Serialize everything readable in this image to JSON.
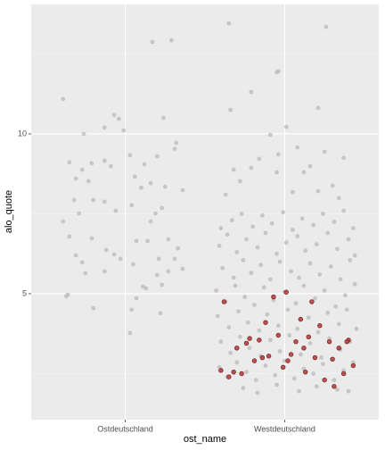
{
  "chart_data": {
    "type": "scatter",
    "x_label": "ost_name",
    "y_label": "alo_quote",
    "xlim": [
      0.41,
      2.59
    ],
    "xticks": [
      {
        "value": 1,
        "label": "Ostdeutschland"
      },
      {
        "value": 2,
        "label": "Westdeutschland"
      }
    ],
    "ylim": [
      1.06,
      14.05
    ],
    "yticks": [
      5,
      10
    ],
    "minor_yticks": [
      2.5,
      7.5,
      12.5
    ],
    "grid": true,
    "layers": [
      {
        "color": "#bdbdbd",
        "points": [
          [
            0.61,
            11.09
          ],
          [
            1.17,
            12.88
          ],
          [
            1.29,
            12.93
          ],
          [
            0.74,
            10.0
          ],
          [
            0.93,
            10.59
          ],
          [
            0.96,
            10.47
          ],
          [
            1.24,
            10.5
          ],
          [
            0.99,
            10.11
          ],
          [
            0.87,
            10.2
          ],
          [
            0.65,
            9.11
          ],
          [
            0.79,
            9.08
          ],
          [
            0.87,
            9.16
          ],
          [
            0.91,
            8.99
          ],
          [
            0.73,
            8.88
          ],
          [
            0.69,
            8.6
          ],
          [
            0.77,
            8.52
          ],
          [
            1.03,
            9.33
          ],
          [
            1.12,
            9.05
          ],
          [
            1.2,
            9.3
          ],
          [
            1.32,
            9.72
          ],
          [
            1.31,
            9.53
          ],
          [
            1.06,
            8.66
          ],
          [
            1.1,
            8.32
          ],
          [
            1.16,
            8.46
          ],
          [
            1.25,
            8.35
          ],
          [
            1.36,
            8.24
          ],
          [
            0.8,
            7.93
          ],
          [
            0.68,
            7.93
          ],
          [
            0.71,
            7.51
          ],
          [
            0.61,
            7.26
          ],
          [
            0.87,
            7.88
          ],
          [
            0.94,
            7.6
          ],
          [
            1.19,
            7.51
          ],
          [
            1.23,
            7.68
          ],
          [
            1.04,
            7.77
          ],
          [
            1.16,
            7.26
          ],
          [
            0.65,
            6.79
          ],
          [
            0.79,
            6.73
          ],
          [
            0.88,
            6.37
          ],
          [
            0.93,
            6.23
          ],
          [
            0.97,
            6.09
          ],
          [
            1.07,
            6.65
          ],
          [
            1.14,
            6.65
          ],
          [
            1.27,
            6.7
          ],
          [
            1.33,
            6.42
          ],
          [
            0.69,
            6.2
          ],
          [
            0.73,
            5.98
          ],
          [
            0.75,
            5.64
          ],
          [
            0.87,
            5.7
          ],
          [
            1.05,
            5.92
          ],
          [
            1.2,
            5.59
          ],
          [
            1.36,
            5.78
          ],
          [
            1.27,
            5.7
          ],
          [
            1.23,
            5.28
          ],
          [
            1.11,
            5.22
          ],
          [
            1.13,
            5.17
          ],
          [
            0.63,
            4.92
          ],
          [
            0.64,
            4.97
          ],
          [
            0.8,
            4.55
          ],
          [
            1.04,
            4.5
          ],
          [
            1.22,
            4.39
          ],
          [
            1.03,
            3.77
          ],
          [
            1.07,
            4.86
          ],
          [
            1.21,
            6.09
          ],
          [
            1.31,
            6.09
          ],
          [
            1.65,
            13.46
          ],
          [
            2.26,
            13.35
          ],
          [
            1.79,
            11.31
          ],
          [
            1.95,
            11.93
          ],
          [
            1.96,
            11.96
          ],
          [
            1.66,
            10.75
          ],
          [
            2.21,
            10.81
          ],
          [
            2.01,
            10.22
          ],
          [
            1.91,
            9.97
          ],
          [
            2.08,
            9.58
          ],
          [
            1.96,
            9.36
          ],
          [
            2.25,
            9.44
          ],
          [
            2.37,
            9.25
          ],
          [
            1.84,
            9.22
          ],
          [
            1.68,
            8.88
          ],
          [
            1.79,
            8.94
          ],
          [
            2.16,
            8.99
          ],
          [
            1.95,
            8.8
          ],
          [
            2.12,
            8.8
          ],
          [
            1.72,
            8.52
          ],
          [
            2.3,
            8.38
          ],
          [
            2.05,
            8.18
          ],
          [
            2.21,
            8.21
          ],
          [
            1.63,
            8.1
          ],
          [
            2.34,
            7.99
          ],
          [
            1.6,
            7.05
          ],
          [
            1.67,
            7.3
          ],
          [
            1.73,
            7.5
          ],
          [
            1.8,
            7.1
          ],
          [
            1.86,
            7.45
          ],
          [
            1.92,
            7.2
          ],
          [
            1.99,
            7.55
          ],
          [
            2.05,
            7.0
          ],
          [
            2.11,
            7.35
          ],
          [
            2.18,
            7.15
          ],
          [
            2.24,
            7.5
          ],
          [
            2.31,
            7.25
          ],
          [
            2.37,
            7.6
          ],
          [
            2.43,
            7.05
          ],
          [
            1.59,
            6.5
          ],
          [
            1.64,
            6.85
          ],
          [
            1.7,
            6.3
          ],
          [
            1.76,
            6.7
          ],
          [
            1.83,
            6.45
          ],
          [
            1.88,
            6.9
          ],
          [
            1.95,
            6.25
          ],
          [
            2.01,
            6.6
          ],
          [
            2.08,
            6.8
          ],
          [
            2.13,
            6.35
          ],
          [
            2.2,
            6.55
          ],
          [
            2.27,
            6.9
          ],
          [
            2.33,
            6.4
          ],
          [
            2.4,
            6.7
          ],
          [
            2.44,
            6.2
          ],
          [
            1.61,
            5.8
          ],
          [
            1.68,
            5.5
          ],
          [
            1.74,
            6.05
          ],
          [
            1.79,
            5.65
          ],
          [
            1.85,
            5.9
          ],
          [
            1.91,
            5.45
          ],
          [
            1.97,
            6.0
          ],
          [
            2.04,
            5.7
          ],
          [
            2.09,
            5.5
          ],
          [
            2.16,
            5.95
          ],
          [
            2.22,
            5.6
          ],
          [
            2.29,
            5.85
          ],
          [
            2.35,
            5.45
          ],
          [
            2.41,
            6.05
          ],
          [
            1.57,
            5.1
          ],
          [
            1.63,
            4.75
          ],
          [
            1.69,
            5.25
          ],
          [
            1.75,
            4.9
          ],
          [
            1.81,
            4.65
          ],
          [
            1.87,
            5.2
          ],
          [
            1.93,
            4.8
          ],
          [
            2.0,
            5.05
          ],
          [
            2.07,
            4.7
          ],
          [
            2.12,
            5.25
          ],
          [
            2.19,
            4.85
          ],
          [
            2.25,
            5.1
          ],
          [
            2.32,
            4.6
          ],
          [
            2.38,
            4.95
          ],
          [
            2.44,
            5.3
          ],
          [
            1.58,
            4.3
          ],
          [
            1.65,
            3.95
          ],
          [
            1.71,
            4.45
          ],
          [
            1.77,
            4.1
          ],
          [
            1.84,
            3.85
          ],
          [
            1.89,
            4.35
          ],
          [
            1.96,
            4.0
          ],
          [
            2.02,
            4.5
          ],
          [
            2.08,
            3.9
          ],
          [
            2.15,
            4.25
          ],
          [
            2.21,
            3.8
          ],
          [
            2.27,
            4.4
          ],
          [
            2.34,
            4.05
          ],
          [
            2.39,
            4.5
          ],
          [
            2.45,
            3.9
          ],
          [
            1.6,
            3.5
          ],
          [
            1.66,
            3.15
          ],
          [
            1.72,
            3.65
          ],
          [
            1.78,
            3.3
          ],
          [
            1.85,
            3.05
          ],
          [
            1.91,
            3.55
          ],
          [
            1.97,
            3.2
          ],
          [
            2.03,
            3.7
          ],
          [
            2.1,
            3.1
          ],
          [
            2.16,
            3.45
          ],
          [
            2.23,
            3.0
          ],
          [
            2.28,
            3.6
          ],
          [
            2.35,
            3.25
          ],
          [
            2.41,
            3.5
          ],
          [
            1.59,
            2.7
          ],
          [
            1.64,
            2.4
          ],
          [
            1.7,
            2.85
          ],
          [
            1.76,
            2.55
          ],
          [
            1.82,
            2.3
          ],
          [
            1.88,
            2.75
          ],
          [
            1.94,
            2.45
          ],
          [
            2.0,
            2.9
          ],
          [
            2.06,
            2.35
          ],
          [
            2.12,
            2.65
          ],
          [
            2.18,
            2.5
          ],
          [
            2.24,
            2.8
          ],
          [
            2.31,
            2.3
          ],
          [
            2.37,
            2.6
          ],
          [
            2.43,
            2.85
          ],
          [
            1.74,
            2.05
          ],
          [
            1.83,
            1.9
          ],
          [
            1.95,
            2.15
          ],
          [
            2.09,
            1.95
          ],
          [
            2.2,
            2.1
          ],
          [
            2.33,
            2.0
          ],
          [
            2.4,
            1.95
          ]
        ]
      },
      {
        "color": "#b5403f",
        "points": [
          [
            1.62,
            4.75
          ],
          [
            1.6,
            2.6
          ],
          [
            1.65,
            2.4
          ],
          [
            1.7,
            3.3
          ],
          [
            1.73,
            2.5
          ],
          [
            1.78,
            3.6
          ],
          [
            1.81,
            2.9
          ],
          [
            1.84,
            3.55
          ],
          [
            1.88,
            4.1
          ],
          [
            1.9,
            3.05
          ],
          [
            1.93,
            4.9
          ],
          [
            1.96,
            3.7
          ],
          [
            1.99,
            2.7
          ],
          [
            2.01,
            5.05
          ],
          [
            2.04,
            3.1
          ],
          [
            2.07,
            3.5
          ],
          [
            2.1,
            4.2
          ],
          [
            2.13,
            2.55
          ],
          [
            2.15,
            3.65
          ],
          [
            2.19,
            3.0
          ],
          [
            2.22,
            4.0
          ],
          [
            2.25,
            2.3
          ],
          [
            2.28,
            3.5
          ],
          [
            2.31,
            2.1
          ],
          [
            2.34,
            3.3
          ],
          [
            2.37,
            2.5
          ],
          [
            2.4,
            3.55
          ],
          [
            2.43,
            2.75
          ],
          [
            1.68,
            2.55
          ],
          [
            1.86,
            3.0
          ],
          [
            2.02,
            2.9
          ],
          [
            2.17,
            4.75
          ],
          [
            2.3,
            2.95
          ],
          [
            1.76,
            3.45
          ],
          [
            2.12,
            3.3
          ],
          [
            2.39,
            3.5
          ]
        ]
      }
    ]
  }
}
